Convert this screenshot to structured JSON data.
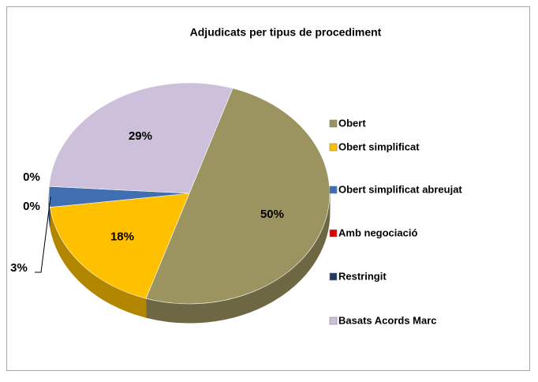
{
  "chart_data": {
    "type": "pie",
    "title": "Adjudicats per tipus de procediment",
    "categories": [
      "Obert",
      "Obert simplificat",
      "Obert simplificat abreujat",
      "Amb negociació",
      "Restringit",
      "Basats Acords Marc"
    ],
    "values": [
      50,
      18,
      3,
      0,
      0,
      29
    ],
    "value_labels": [
      "50%",
      "18%",
      "3%",
      "0%",
      "0%",
      "29%"
    ],
    "colors": [
      "#9b9460",
      "#ffc000",
      "#3f6fb0",
      "#e00000",
      "#1f3864",
      "#ccc0da"
    ],
    "legend": "right"
  }
}
